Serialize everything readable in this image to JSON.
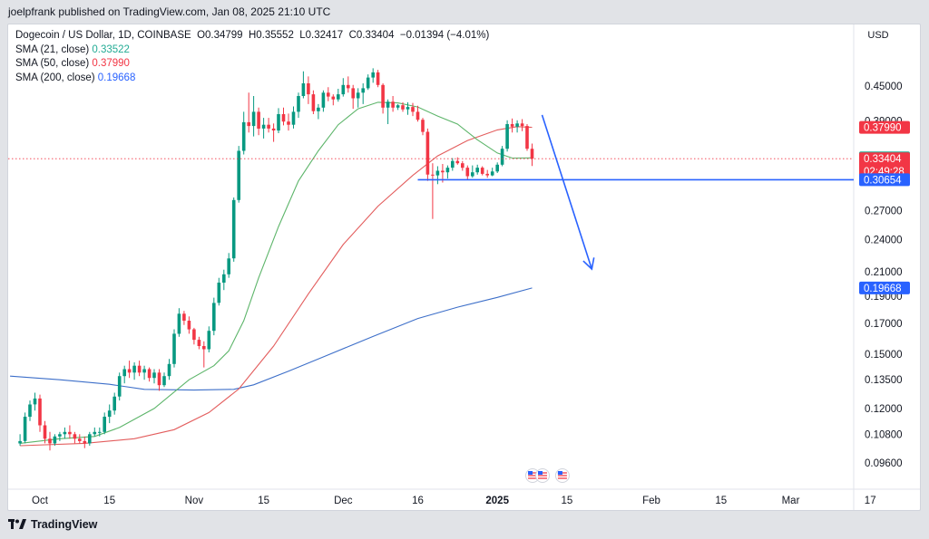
{
  "publisher_line": "joelpfrank published on TradingView.com, Jan 08, 2025 21:10 UTC",
  "legend": {
    "symbol_line": "Dogecoin / US Dollar, 1D, COINBASE",
    "open": "O0.34799",
    "high": "H0.35552",
    "low": "L0.32417",
    "close": "C0.33404",
    "change": "−0.01394 (−4.01%)",
    "sma21_label": "SMA (21, close)",
    "sma21_value": "0.33522",
    "sma50_label": "SMA (50, close)",
    "sma50_value": "0.37990",
    "sma200_label": "SMA (200, close)",
    "sma200_value": "0.19668"
  },
  "currency": "USD",
  "footer_brand": "TradingView",
  "chart_data": {
    "type": "candlestick",
    "scale": "log",
    "price_ticks": [
      0.45,
      0.39,
      0.30654,
      0.27,
      0.24,
      0.21,
      0.19,
      0.17,
      0.15,
      0.135,
      0.12,
      0.108,
      0.096
    ],
    "price_tick_labels": [
      "0.45000",
      "0.39000",
      "0.27000",
      "0.24000",
      "0.21000",
      "0.19000",
      "0.17000",
      "0.15000",
      "0.13500",
      "0.12000",
      "0.10800",
      "0.09600"
    ],
    "time_labels": [
      {
        "label": "Oct",
        "date": "2024-10-01"
      },
      {
        "label": "15",
        "date": "2024-10-15"
      },
      {
        "label": "Nov",
        "date": "2024-11-01"
      },
      {
        "label": "15",
        "date": "2024-11-15"
      },
      {
        "label": "Dec",
        "date": "2024-12-01"
      },
      {
        "label": "16",
        "date": "2024-12-16"
      },
      {
        "label": "2025",
        "date": "2025-01-01"
      },
      {
        "label": "15",
        "date": "2025-01-15"
      },
      {
        "label": "Feb",
        "date": "2025-02-01"
      },
      {
        "label": "15",
        "date": "2025-02-15"
      },
      {
        "label": "Mar",
        "date": "2025-03-01"
      },
      {
        "label": "17",
        "date": "2025-03-17"
      }
    ],
    "badges": [
      {
        "label": "0.37990",
        "price": 0.3799,
        "color": "#f23645"
      },
      {
        "label": "0.33522",
        "price": 0.33522,
        "color": "#22ab94"
      },
      {
        "label": "0.33404",
        "sublabel": "02:49:28",
        "price": 0.33404,
        "color": "#f23645"
      },
      {
        "label": "0.30654",
        "price": 0.30654,
        "color": "#2962ff"
      },
      {
        "label": "0.19668",
        "price": 0.19668,
        "color": "#2962ff"
      }
    ],
    "last_close": 0.33404,
    "horizontal_line": {
      "price": 0.30654,
      "from_date": "2024-12-16",
      "color": "#2962ff"
    },
    "arrow": {
      "from_date": "2025-01-10",
      "from_price": 0.3998,
      "to_date": "2025-01-20",
      "to_price": 0.2125,
      "color": "#2962ff"
    },
    "candles": [
      [
        "2024-09-27",
        0.104,
        0.108,
        0.103,
        0.105
      ],
      [
        "2024-09-28",
        0.105,
        0.118,
        0.104,
        0.116
      ],
      [
        "2024-09-29",
        0.116,
        0.124,
        0.114,
        0.122
      ],
      [
        "2024-09-30",
        0.122,
        0.128,
        0.119,
        0.125
      ],
      [
        "2024-10-01",
        0.125,
        0.127,
        0.109,
        0.112
      ],
      [
        "2024-10-02",
        0.112,
        0.114,
        0.104,
        0.106
      ],
      [
        "2024-10-03",
        0.106,
        0.109,
        0.101,
        0.104
      ],
      [
        "2024-10-04",
        0.104,
        0.108,
        0.103,
        0.107
      ],
      [
        "2024-10-05",
        0.107,
        0.109,
        0.105,
        0.108
      ],
      [
        "2024-10-06",
        0.108,
        0.111,
        0.106,
        0.109
      ],
      [
        "2024-10-07",
        0.109,
        0.112,
        0.106,
        0.108
      ],
      [
        "2024-10-08",
        0.108,
        0.109,
        0.104,
        0.106
      ],
      [
        "2024-10-09",
        0.106,
        0.108,
        0.104,
        0.105
      ],
      [
        "2024-10-10",
        0.105,
        0.107,
        0.102,
        0.104
      ],
      [
        "2024-10-11",
        0.104,
        0.109,
        0.103,
        0.108
      ],
      [
        "2024-10-12",
        0.108,
        0.111,
        0.107,
        0.109
      ],
      [
        "2024-10-13",
        0.109,
        0.111,
        0.107,
        0.109
      ],
      [
        "2024-10-14",
        0.109,
        0.118,
        0.108,
        0.116
      ],
      [
        "2024-10-15",
        0.116,
        0.122,
        0.113,
        0.119
      ],
      [
        "2024-10-16",
        0.119,
        0.128,
        0.117,
        0.126
      ],
      [
        "2024-10-17",
        0.126,
        0.139,
        0.124,
        0.137
      ],
      [
        "2024-10-18",
        0.137,
        0.143,
        0.133,
        0.141
      ],
      [
        "2024-10-19",
        0.141,
        0.146,
        0.136,
        0.139
      ],
      [
        "2024-10-20",
        0.139,
        0.145,
        0.135,
        0.143
      ],
      [
        "2024-10-21",
        0.143,
        0.146,
        0.137,
        0.139
      ],
      [
        "2024-10-22",
        0.139,
        0.143,
        0.135,
        0.141
      ],
      [
        "2024-10-23",
        0.141,
        0.142,
        0.134,
        0.136
      ],
      [
        "2024-10-24",
        0.136,
        0.141,
        0.133,
        0.139
      ],
      [
        "2024-10-25",
        0.139,
        0.141,
        0.129,
        0.132
      ],
      [
        "2024-10-26",
        0.132,
        0.139,
        0.131,
        0.137
      ],
      [
        "2024-10-27",
        0.137,
        0.147,
        0.135,
        0.144
      ],
      [
        "2024-10-28",
        0.144,
        0.166,
        0.142,
        0.163
      ],
      [
        "2024-10-29",
        0.163,
        0.181,
        0.161,
        0.177
      ],
      [
        "2024-10-30",
        0.177,
        0.179,
        0.169,
        0.172
      ],
      [
        "2024-10-31",
        0.172,
        0.175,
        0.163,
        0.166
      ],
      [
        "2024-11-01",
        0.166,
        0.167,
        0.156,
        0.159
      ],
      [
        "2024-11-02",
        0.159,
        0.161,
        0.153,
        0.155
      ],
      [
        "2024-11-03",
        0.155,
        0.158,
        0.142,
        0.153
      ],
      [
        "2024-11-04",
        0.153,
        0.168,
        0.151,
        0.165
      ],
      [
        "2024-11-05",
        0.165,
        0.189,
        0.162,
        0.185
      ],
      [
        "2024-11-06",
        0.185,
        0.205,
        0.183,
        0.201
      ],
      [
        "2024-11-07",
        0.201,
        0.212,
        0.195,
        0.208
      ],
      [
        "2024-11-08",
        0.208,
        0.227,
        0.205,
        0.222
      ],
      [
        "2024-11-09",
        0.222,
        0.285,
        0.219,
        0.282
      ],
      [
        "2024-11-10",
        0.282,
        0.352,
        0.279,
        0.345
      ],
      [
        "2024-11-11",
        0.345,
        0.405,
        0.34,
        0.388
      ],
      [
        "2024-11-12",
        0.388,
        0.438,
        0.372,
        0.382
      ],
      [
        "2024-11-13",
        0.382,
        0.432,
        0.366,
        0.405
      ],
      [
        "2024-11-14",
        0.405,
        0.412,
        0.368,
        0.378
      ],
      [
        "2024-11-15",
        0.378,
        0.395,
        0.363,
        0.384
      ],
      [
        "2024-11-16",
        0.384,
        0.395,
        0.372,
        0.378
      ],
      [
        "2024-11-17",
        0.378,
        0.386,
        0.358,
        0.375
      ],
      [
        "2024-11-18",
        0.375,
        0.411,
        0.371,
        0.401
      ],
      [
        "2024-11-19",
        0.401,
        0.412,
        0.383,
        0.389
      ],
      [
        "2024-11-20",
        0.389,
        0.402,
        0.375,
        0.384
      ],
      [
        "2024-11-21",
        0.384,
        0.414,
        0.378,
        0.405
      ],
      [
        "2024-11-22",
        0.405,
        0.438,
        0.395,
        0.432
      ],
      [
        "2024-11-23",
        0.432,
        0.478,
        0.428,
        0.455
      ],
      [
        "2024-11-24",
        0.455,
        0.468,
        0.418,
        0.435
      ],
      [
        "2024-11-25",
        0.435,
        0.442,
        0.401,
        0.406
      ],
      [
        "2024-11-26",
        0.406,
        0.418,
        0.393,
        0.412
      ],
      [
        "2024-11-27",
        0.412,
        0.442,
        0.405,
        0.438
      ],
      [
        "2024-11-28",
        0.438,
        0.448,
        0.423,
        0.431
      ],
      [
        "2024-11-29",
        0.431,
        0.435,
        0.416,
        0.426
      ],
      [
        "2024-11-30",
        0.426,
        0.445,
        0.422,
        0.435
      ],
      [
        "2024-12-01",
        0.435,
        0.465,
        0.431,
        0.452
      ],
      [
        "2024-12-02",
        0.452,
        0.468,
        0.438,
        0.446
      ],
      [
        "2024-12-03",
        0.446,
        0.452,
        0.41,
        0.428
      ],
      [
        "2024-12-04",
        0.428,
        0.446,
        0.412,
        0.438
      ],
      [
        "2024-12-05",
        0.438,
        0.455,
        0.418,
        0.446
      ],
      [
        "2024-12-06",
        0.446,
        0.472,
        0.443,
        0.466
      ],
      [
        "2024-12-07",
        0.466,
        0.484,
        0.456,
        0.476
      ],
      [
        "2024-12-08",
        0.476,
        0.481,
        0.448,
        0.452
      ],
      [
        "2024-12-09",
        0.452,
        0.455,
        0.402,
        0.412
      ],
      [
        "2024-12-10",
        0.412,
        0.426,
        0.385,
        0.422
      ],
      [
        "2024-12-11",
        0.422,
        0.432,
        0.405,
        0.412
      ],
      [
        "2024-12-12",
        0.412,
        0.418,
        0.408,
        0.416
      ],
      [
        "2024-12-13",
        0.416,
        0.421,
        0.405,
        0.409
      ],
      [
        "2024-12-14",
        0.409,
        0.421,
        0.4,
        0.413
      ],
      [
        "2024-12-15",
        0.413,
        0.42,
        0.398,
        0.405
      ],
      [
        "2024-12-16",
        0.405,
        0.415,
        0.389,
        0.392
      ],
      [
        "2024-12-17",
        0.392,
        0.395,
        0.368,
        0.373
      ],
      [
        "2024-12-18",
        0.373,
        0.378,
        0.305,
        0.313
      ],
      [
        "2024-12-19",
        0.313,
        0.328,
        0.261,
        0.312
      ],
      [
        "2024-12-20",
        0.312,
        0.324,
        0.301,
        0.318
      ],
      [
        "2024-12-21",
        0.318,
        0.327,
        0.303,
        0.316
      ],
      [
        "2024-12-22",
        0.316,
        0.325,
        0.308,
        0.322
      ],
      [
        "2024-12-23",
        0.322,
        0.335,
        0.318,
        0.331
      ],
      [
        "2024-12-24",
        0.331,
        0.336,
        0.326,
        0.328
      ],
      [
        "2024-12-25",
        0.328,
        0.331,
        0.318,
        0.322
      ],
      [
        "2024-12-26",
        0.322,
        0.325,
        0.307,
        0.311
      ],
      [
        "2024-12-27",
        0.311,
        0.325,
        0.309,
        0.316
      ],
      [
        "2024-12-28",
        0.316,
        0.326,
        0.313,
        0.322
      ],
      [
        "2024-12-29",
        0.322,
        0.324,
        0.312,
        0.314
      ],
      [
        "2024-12-30",
        0.314,
        0.319,
        0.309,
        0.312
      ],
      [
        "2024-12-31",
        0.312,
        0.322,
        0.311,
        0.317
      ],
      [
        "2025-01-01",
        0.317,
        0.329,
        0.315,
        0.326
      ],
      [
        "2025-01-02",
        0.326,
        0.352,
        0.324,
        0.348
      ],
      [
        "2025-01-03",
        0.348,
        0.391,
        0.344,
        0.385
      ],
      [
        "2025-01-04",
        0.385,
        0.394,
        0.372,
        0.381
      ],
      [
        "2025-01-05",
        0.381,
        0.391,
        0.372,
        0.386
      ],
      [
        "2025-01-06",
        0.386,
        0.393,
        0.374,
        0.382
      ],
      [
        "2025-01-07",
        0.382,
        0.385,
        0.345,
        0.348
      ],
      [
        "2025-01-08",
        0.348,
        0.35552,
        0.32417,
        0.33404
      ]
    ],
    "sma21": [
      [
        "2024-09-27",
        0.104
      ],
      [
        "2024-10-05",
        0.106
      ],
      [
        "2024-10-12",
        0.107
      ],
      [
        "2024-10-17",
        0.111
      ],
      [
        "2024-10-24",
        0.12
      ],
      [
        "2024-10-31",
        0.135
      ],
      [
        "2024-11-05",
        0.143
      ],
      [
        "2024-11-08",
        0.152
      ],
      [
        "2024-11-11",
        0.172
      ],
      [
        "2024-11-14",
        0.205
      ],
      [
        "2024-11-18",
        0.253
      ],
      [
        "2024-11-22",
        0.305
      ],
      [
        "2024-11-26",
        0.345
      ],
      [
        "2024-11-30",
        0.384
      ],
      [
        "2024-12-04",
        0.41
      ],
      [
        "2024-12-08",
        0.421
      ],
      [
        "2024-12-12",
        0.42
      ],
      [
        "2024-12-16",
        0.413
      ],
      [
        "2024-12-20",
        0.398
      ],
      [
        "2024-12-24",
        0.385
      ],
      [
        "2024-12-28",
        0.361
      ],
      [
        "2025-01-01",
        0.342
      ],
      [
        "2025-01-04",
        0.335
      ],
      [
        "2025-01-08",
        0.33522
      ]
    ],
    "sma50": [
      [
        "2024-09-27",
        0.103
      ],
      [
        "2024-10-10",
        0.104
      ],
      [
        "2024-10-20",
        0.106
      ],
      [
        "2024-10-28",
        0.11
      ],
      [
        "2024-11-04",
        0.118
      ],
      [
        "2024-11-10",
        0.13
      ],
      [
        "2024-11-17",
        0.155
      ],
      [
        "2024-11-24",
        0.192
      ],
      [
        "2024-12-01",
        0.235
      ],
      [
        "2024-12-08",
        0.275
      ],
      [
        "2024-12-15",
        0.312
      ],
      [
        "2024-12-20",
        0.338
      ],
      [
        "2024-12-26",
        0.36
      ],
      [
        "2025-01-01",
        0.376
      ],
      [
        "2025-01-05",
        0.381
      ],
      [
        "2025-01-08",
        0.3799
      ]
    ],
    "sma200": [
      [
        "2024-09-25",
        0.137
      ],
      [
        "2024-10-05",
        0.135
      ],
      [
        "2024-10-15",
        0.1325
      ],
      [
        "2024-10-22",
        0.1298
      ],
      [
        "2024-11-01",
        0.1294
      ],
      [
        "2024-11-09",
        0.1298
      ],
      [
        "2024-11-13",
        0.1322
      ],
      [
        "2024-11-20",
        0.1398
      ],
      [
        "2024-11-28",
        0.1495
      ],
      [
        "2024-12-07",
        0.1612
      ],
      [
        "2024-12-16",
        0.1735
      ],
      [
        "2024-12-24",
        0.1818
      ],
      [
        "2025-01-01",
        0.1892
      ],
      [
        "2025-01-08",
        0.19668
      ]
    ]
  }
}
